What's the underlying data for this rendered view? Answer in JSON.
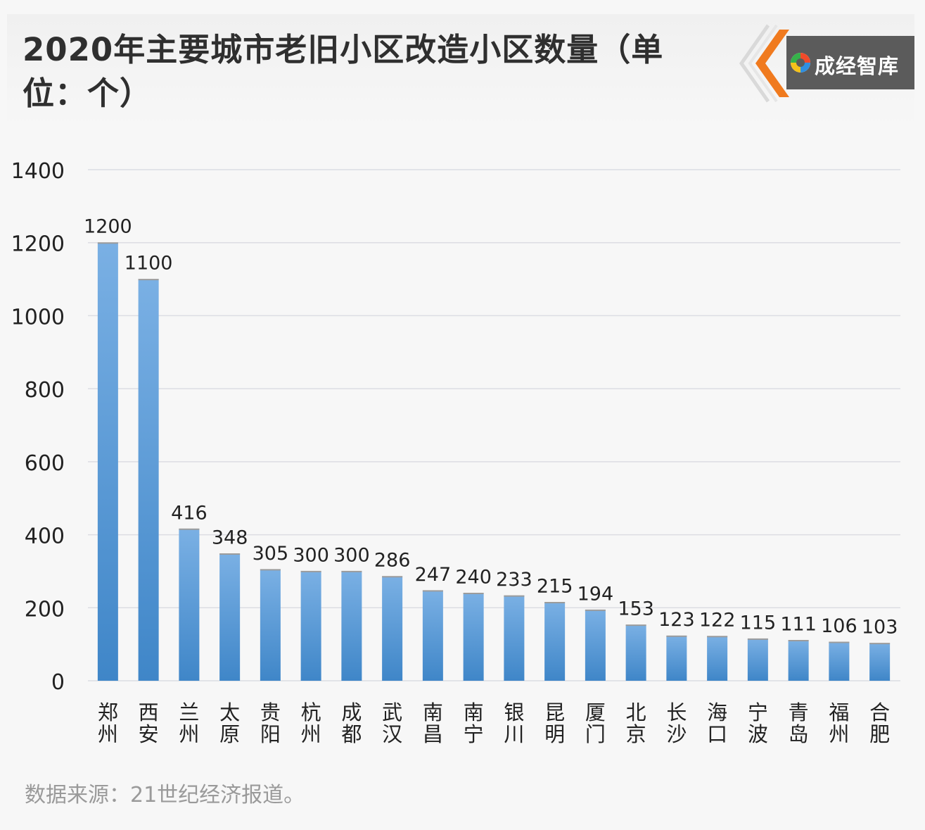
{
  "header": {
    "title": "2020年主要城市老旧小区改造小区数量（单位：个）",
    "logo_text": "成经智库"
  },
  "source": "数据来源：21世纪经济报道。",
  "colors": {
    "bar_top": "#7ab0e4",
    "bar_bottom": "#3f86c8",
    "logo_orange": "#f07a1e",
    "logo_box": "#5b5b5b",
    "grid": "#dcdde3",
    "text": "#222222"
  },
  "chart_data": {
    "type": "bar",
    "title": "2020年主要城市老旧小区改造小区数量（单位：个）",
    "categories": [
      "郑州",
      "西安",
      "兰州",
      "太原",
      "贵阳",
      "杭州",
      "成都",
      "武汉",
      "南昌",
      "南宁",
      "银川",
      "昆明",
      "厦门",
      "北京",
      "长沙",
      "海口",
      "宁波",
      "青岛",
      "福州",
      "合肥"
    ],
    "values": [
      1200,
      1100,
      416,
      348,
      305,
      300,
      300,
      286,
      247,
      240,
      233,
      215,
      194,
      153,
      123,
      122,
      115,
      111,
      106,
      103
    ],
    "ylim": [
      0,
      1400
    ],
    "yticks": [
      0,
      200,
      400,
      600,
      800,
      1000,
      1200,
      1400
    ],
    "grid": true,
    "legend": "none",
    "data_labels": true
  }
}
